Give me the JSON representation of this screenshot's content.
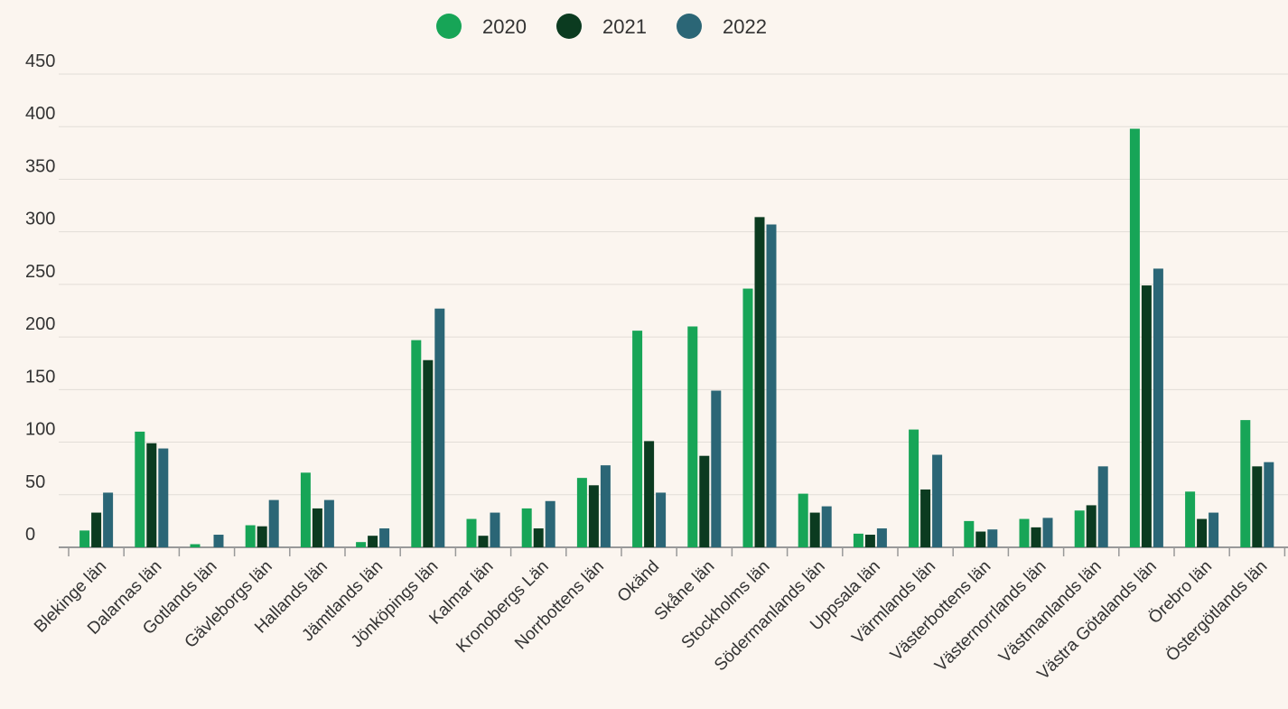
{
  "chart_data": {
    "type": "bar",
    "categories": [
      "Blekinge län",
      "Dalarnas län",
      "Gotlands län",
      "Gävleborgs län",
      "Hallands län",
      "Jämtlands län",
      "Jönköpings län",
      "Kalmar län",
      "Kronobergs Län",
      "Norrbottens län",
      "Okänd",
      "Skåne län",
      "Stockholms län",
      "Södermanlands län",
      "Uppsala län",
      "Värmlands län",
      "Västerbottens län",
      "Västernorrlands län",
      "Västmanlands län",
      "Västra Götalands län",
      "Örebro län",
      "Östergötlands län"
    ],
    "series": [
      {
        "name": "2020",
        "color": "#17a557",
        "values": [
          16,
          110,
          3,
          21,
          71,
          5,
          197,
          27,
          37,
          66,
          206,
          210,
          246,
          51,
          13,
          112,
          25,
          27,
          35,
          398,
          53,
          121
        ]
      },
      {
        "name": "2021",
        "color": "#0b3b20",
        "values": [
          33,
          99,
          0,
          20,
          37,
          11,
          178,
          11,
          18,
          59,
          101,
          87,
          314,
          33,
          12,
          55,
          15,
          19,
          40,
          249,
          27,
          77
        ]
      },
      {
        "name": "2022",
        "color": "#2b6676",
        "values": [
          52,
          94,
          12,
          45,
          45,
          18,
          227,
          33,
          44,
          78,
          52,
          149,
          307,
          39,
          18,
          88,
          17,
          28,
          77,
          265,
          33,
          81
        ]
      }
    ],
    "ylim": [
      0,
      450
    ],
    "yticks": [
      0,
      50,
      100,
      150,
      200,
      250,
      300,
      350,
      400,
      450
    ],
    "grid": true,
    "legend": "top"
  }
}
